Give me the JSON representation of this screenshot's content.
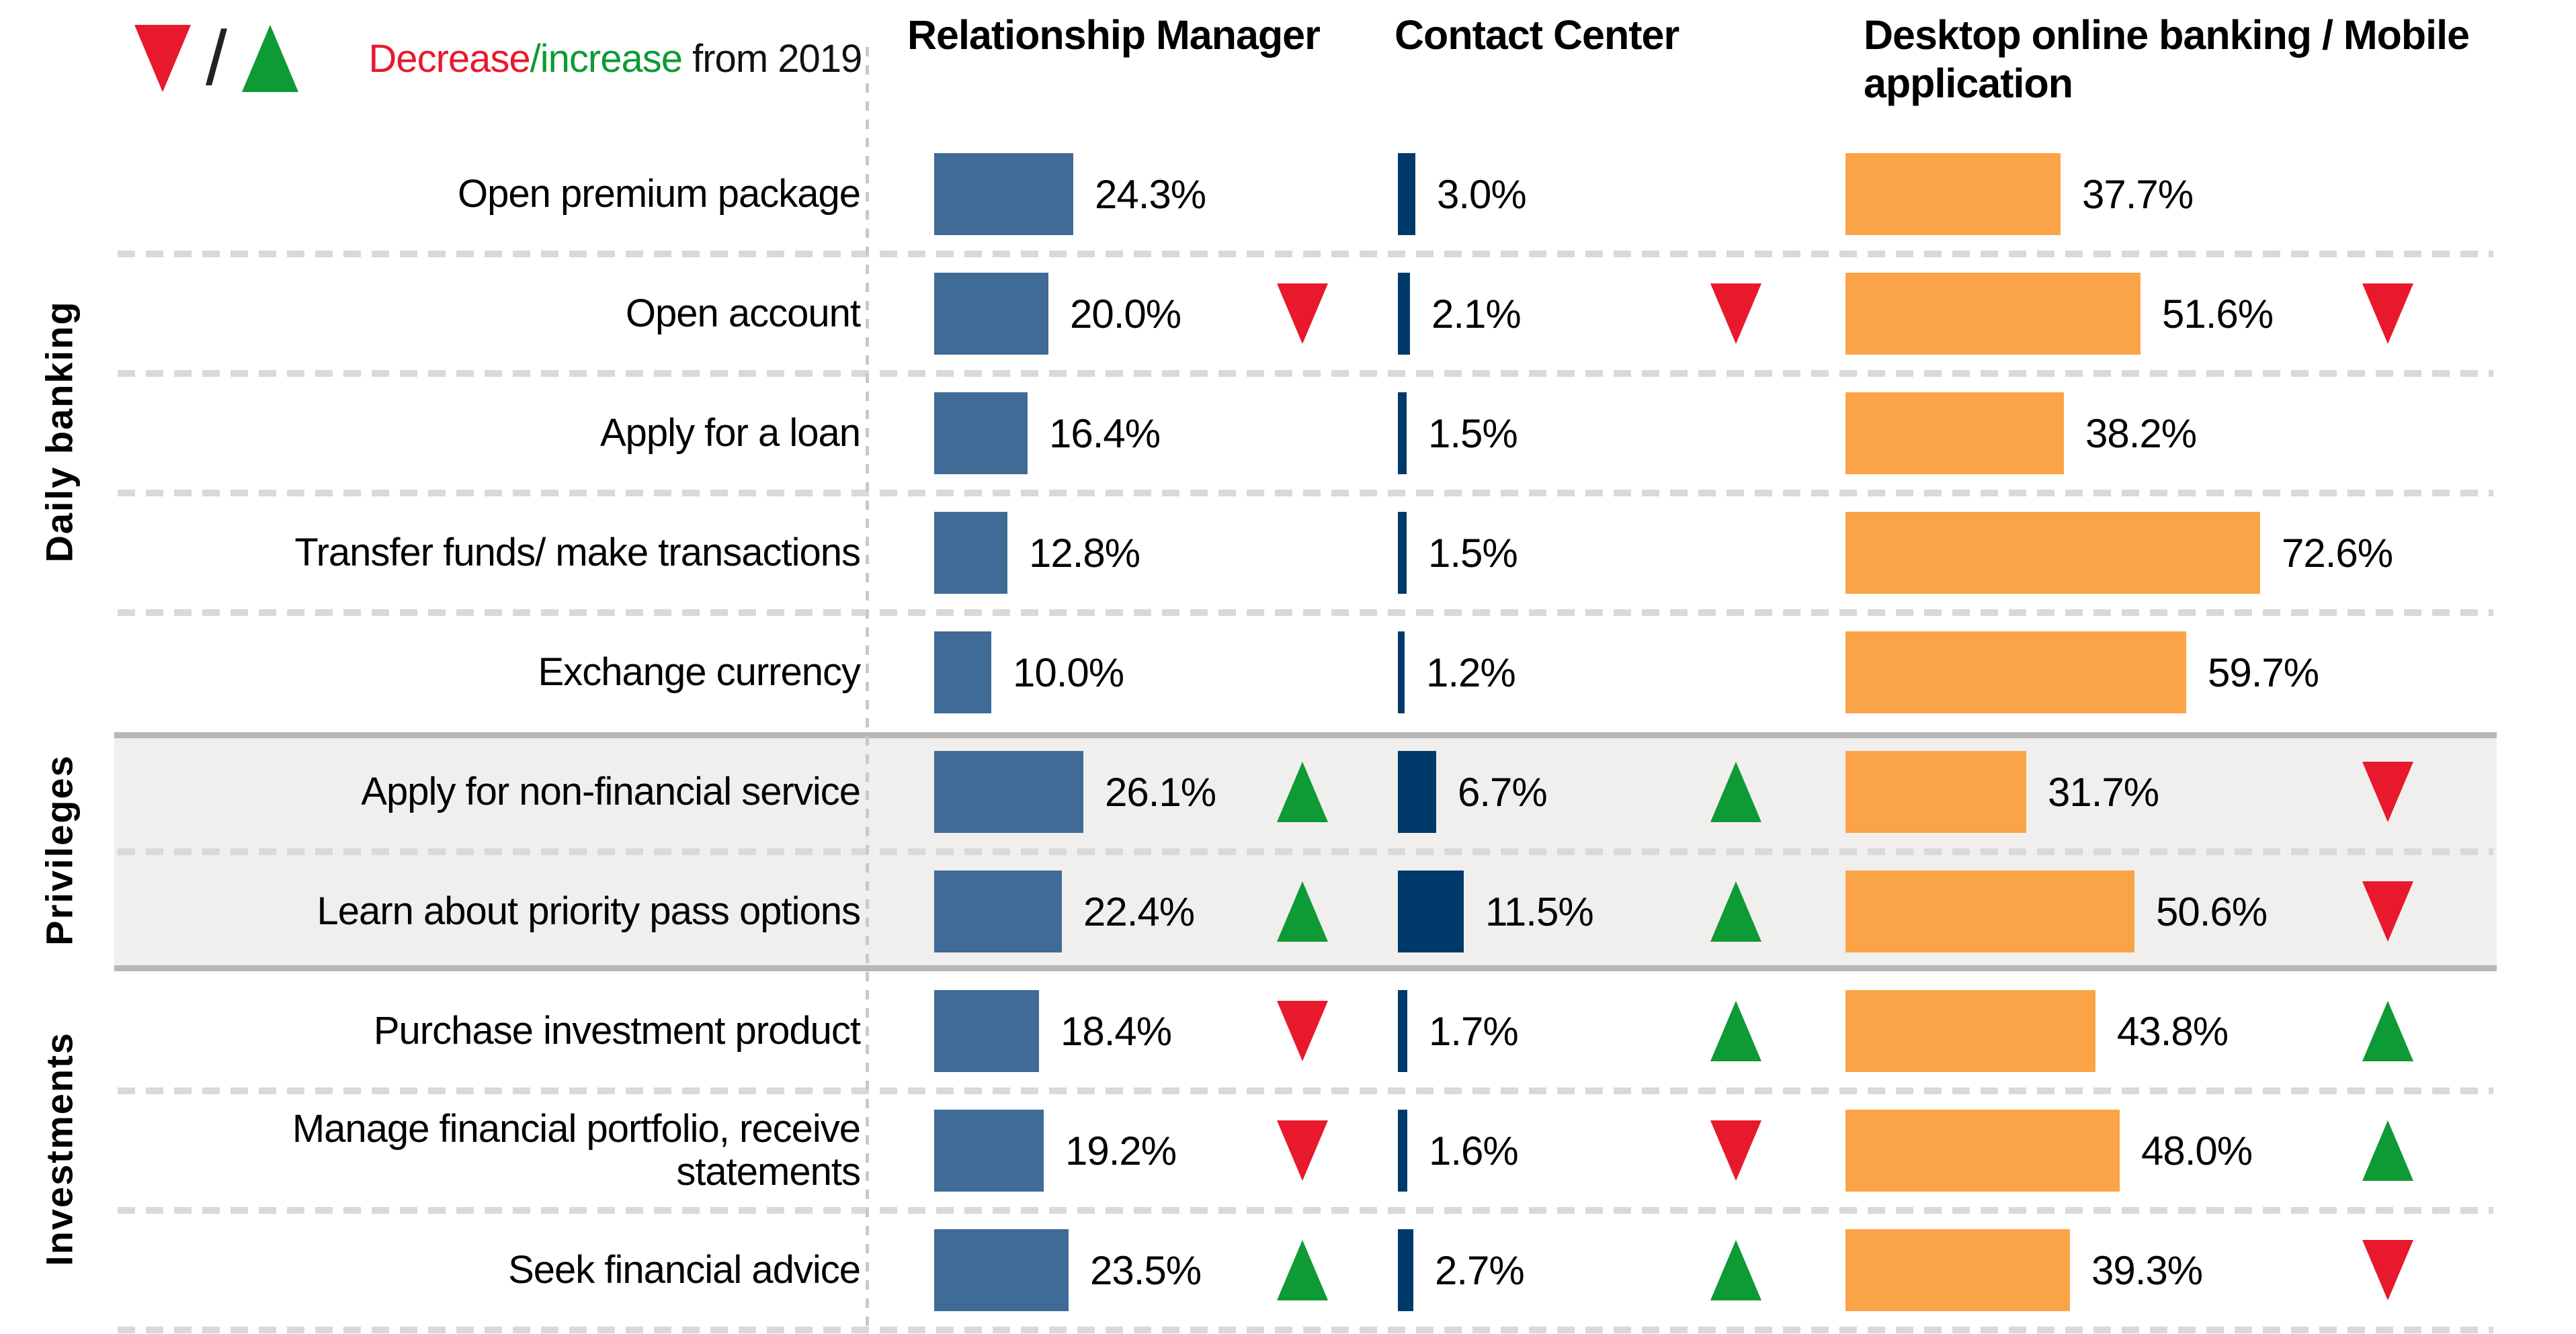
{
  "legend": {
    "decrease_label": "Decrease",
    "slash": "/",
    "increase_label": "increase",
    "suffix": " from 2019",
    "big_slash": "/"
  },
  "columns": [
    {
      "id": "rm",
      "label": "Relationship Manager"
    },
    {
      "id": "cc",
      "label": "Contact Center"
    },
    {
      "id": "desktop",
      "label": "Desktop online banking / Mobile application"
    }
  ],
  "colors": {
    "rm_bar": "#3f6b96",
    "cc_bar": "#003a6b",
    "desktop_bar": "#fba447",
    "red": "#e8192c",
    "green": "#0e9a34",
    "band_bg": "#f0efee",
    "band_border": "#b7b7b6",
    "dash": "#d9d9d9"
  },
  "groups": [
    {
      "label": "Daily banking",
      "start_row": 0,
      "end_row": 4,
      "highlighted": false
    },
    {
      "label": "Privileges",
      "start_row": 5,
      "end_row": 6,
      "highlighted": true
    },
    {
      "label": "Investments",
      "start_row": 7,
      "end_row": 9,
      "highlighted": false
    }
  ],
  "rows": [
    {
      "label": "Open premium package",
      "rm": {
        "display": "24.3%",
        "num": 24.3,
        "arrow": null
      },
      "cc": {
        "display": "3.0%",
        "num": 3.0,
        "arrow": null
      },
      "desktop": {
        "display": "37.7%",
        "num": 37.7,
        "arrow": null
      }
    },
    {
      "label": "Open account",
      "rm": {
        "display": "20.0%",
        "num": 20.0,
        "arrow": "down"
      },
      "cc": {
        "display": "2.1%",
        "num": 2.1,
        "arrow": "down"
      },
      "desktop": {
        "display": "51.6%",
        "num": 51.6,
        "arrow": "down"
      }
    },
    {
      "label": "Apply for a loan",
      "rm": {
        "display": "16.4%",
        "num": 16.4,
        "arrow": null
      },
      "cc": {
        "display": "1.5%",
        "num": 1.5,
        "arrow": null
      },
      "desktop": {
        "display": "38.2%",
        "num": 38.2,
        "arrow": null
      }
    },
    {
      "label": "Transfer funds/ make transactions",
      "rm": {
        "display": "12.8%",
        "num": 12.8,
        "arrow": null
      },
      "cc": {
        "display": "1.5%",
        "num": 1.5,
        "arrow": null
      },
      "desktop": {
        "display": "72.6%",
        "num": 72.6,
        "arrow": null
      }
    },
    {
      "label": "Exchange currency",
      "rm": {
        "display": "10.0%",
        "num": 10.0,
        "arrow": null
      },
      "cc": {
        "display": "1.2%",
        "num": 1.2,
        "arrow": null
      },
      "desktop": {
        "display": "59.7%",
        "num": 59.7,
        "arrow": null
      }
    },
    {
      "label": "Apply for non-financial service",
      "rm": {
        "display": "26.1%",
        "num": 26.1,
        "arrow": "up"
      },
      "cc": {
        "display": "6.7%",
        "num": 6.7,
        "arrow": "up"
      },
      "desktop": {
        "display": "31.7%",
        "num": 31.7,
        "arrow": "down"
      }
    },
    {
      "label": "Learn about priority pass options",
      "rm": {
        "display": "22.4%",
        "num": 22.4,
        "arrow": "up"
      },
      "cc": {
        "display": "11.5%",
        "num": 11.5,
        "arrow": "up"
      },
      "desktop": {
        "display": "50.6%",
        "num": 50.6,
        "arrow": "down"
      }
    },
    {
      "label": "Purchase investment product",
      "rm": {
        "display": "18.4%",
        "num": 18.4,
        "arrow": "down"
      },
      "cc": {
        "display": "1.7%",
        "num": 1.7,
        "arrow": "up"
      },
      "desktop": {
        "display": "43.8%",
        "num": 43.8,
        "arrow": "up"
      }
    },
    {
      "label": "Manage financial portfolio, receive statements",
      "rm": {
        "display": "19.2%",
        "num": 19.2,
        "arrow": "down"
      },
      "cc": {
        "display": "1.6%",
        "num": 1.6,
        "arrow": "down"
      },
      "desktop": {
        "display": "48.0%",
        "num": 48.0,
        "arrow": "up"
      }
    },
    {
      "label": "Seek financial advice",
      "rm": {
        "display": "23.5%",
        "num": 23.5,
        "arrow": "up"
      },
      "cc": {
        "display": "2.7%",
        "num": 2.7,
        "arrow": "up"
      },
      "desktop": {
        "display": "39.3%",
        "num": 39.3,
        "arrow": "down"
      }
    }
  ],
  "chart_data": {
    "type": "bar",
    "title": "",
    "unit": "%",
    "legend": "▼/▲ Decrease/increase from 2019",
    "categories": [
      "Open premium package",
      "Open account",
      "Apply for a loan",
      "Transfer funds/ make transactions",
      "Exchange currency",
      "Apply for non-financial service",
      "Learn about priority pass options",
      "Purchase investment product",
      "Manage financial portfolio, receive statements",
      "Seek financial advice"
    ],
    "row_groups": [
      {
        "label": "Daily banking",
        "categories_index": [
          0,
          1,
          2,
          3,
          4
        ]
      },
      {
        "label": "Privileges",
        "categories_index": [
          5,
          6
        ]
      },
      {
        "label": "Investments",
        "categories_index": [
          7,
          8,
          9
        ]
      }
    ],
    "series": [
      {
        "name": "Relationship Manager",
        "color": "#3f6b96",
        "values": [
          24.3,
          20.0,
          16.4,
          12.8,
          10.0,
          26.1,
          22.4,
          18.4,
          19.2,
          23.5
        ],
        "change_from_2019": [
          null,
          "decrease",
          null,
          null,
          null,
          "increase",
          "increase",
          "decrease",
          "decrease",
          "increase"
        ]
      },
      {
        "name": "Contact Center",
        "color": "#003a6b",
        "values": [
          3.0,
          2.1,
          1.5,
          1.5,
          1.2,
          6.7,
          11.5,
          1.7,
          1.6,
          2.7
        ],
        "change_from_2019": [
          null,
          "decrease",
          null,
          null,
          null,
          "increase",
          "increase",
          "increase",
          "decrease",
          "increase"
        ]
      },
      {
        "name": "Desktop online banking / Mobile application",
        "color": "#fba447",
        "values": [
          37.7,
          51.6,
          38.2,
          72.6,
          59.7,
          31.7,
          50.6,
          43.8,
          48.0,
          39.3
        ],
        "change_from_2019": [
          null,
          "decrease",
          null,
          null,
          null,
          "decrease",
          "decrease",
          "increase",
          "increase",
          "decrease"
        ]
      }
    ],
    "xlim": [
      0,
      80
    ],
    "grid": false,
    "legend_position": "top-left"
  }
}
